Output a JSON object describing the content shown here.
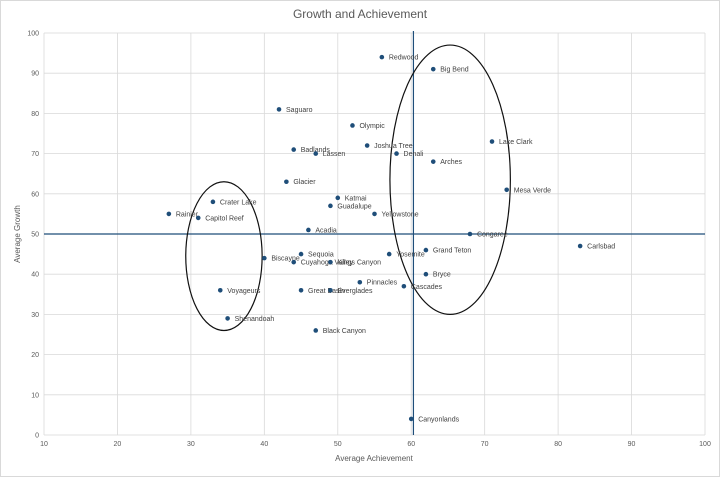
{
  "chart_data": {
    "type": "scatter",
    "title": "Growth and Achievement",
    "xlabel": "Average Achievement",
    "ylabel": "Average Growth",
    "xlim": [
      10,
      100
    ],
    "ylim": [
      0,
      100
    ],
    "x_ticks": [
      10,
      20,
      30,
      40,
      50,
      60,
      70,
      80,
      90,
      100
    ],
    "y_ticks": [
      0,
      10,
      20,
      30,
      40,
      50,
      60,
      70,
      80,
      90,
      100
    ],
    "grid": true,
    "legend": "none",
    "marker_color": "#1f4e79",
    "reference_lines": [
      {
        "orientation": "horizontal",
        "y": 50,
        "color": "#1f4e79"
      },
      {
        "orientation": "vertical",
        "x": 60.3,
        "color": "#1f4e79"
      }
    ],
    "ellipses": [
      {
        "cx": 34.5,
        "cy": 44.5,
        "rx": 5.2,
        "ry": 18.5
      },
      {
        "cx": 65.3,
        "cy": 63.5,
        "rx": 8.2,
        "ry": 33.5
      }
    ],
    "points": [
      {
        "label": "Redwood",
        "x": 56,
        "y": 94
      },
      {
        "label": "Big Bend",
        "x": 63,
        "y": 91
      },
      {
        "label": "Saguaro",
        "x": 42,
        "y": 81
      },
      {
        "label": "Olympic",
        "x": 52,
        "y": 77
      },
      {
        "label": "Lake Clark",
        "x": 71,
        "y": 73
      },
      {
        "label": "Joshua Tree",
        "x": 54,
        "y": 72
      },
      {
        "label": "Badlands",
        "x": 44,
        "y": 71
      },
      {
        "label": "Lassen",
        "x": 47,
        "y": 70
      },
      {
        "label": "Denali",
        "x": 58,
        "y": 70
      },
      {
        "label": "Arches",
        "x": 63,
        "y": 68
      },
      {
        "label": "Glacier",
        "x": 43,
        "y": 63
      },
      {
        "label": "Mesa Verde",
        "x": 73,
        "y": 61
      },
      {
        "label": "Katmai",
        "x": 50,
        "y": 59
      },
      {
        "label": "Crater Lake",
        "x": 33,
        "y": 58
      },
      {
        "label": "Guadalupe",
        "x": 49,
        "y": 57
      },
      {
        "label": "Rainier",
        "x": 27,
        "y": 55
      },
      {
        "label": "Capitol Reef",
        "x": 31,
        "y": 54
      },
      {
        "label": "Yellowstone",
        "x": 55,
        "y": 55
      },
      {
        "label": "Acadia",
        "x": 46,
        "y": 51
      },
      {
        "label": "Congaree",
        "x": 68,
        "y": 50
      },
      {
        "label": "Carlsbad",
        "x": 83,
        "y": 47
      },
      {
        "label": "Grand Teton",
        "x": 62,
        "y": 46
      },
      {
        "label": "Sequoia",
        "x": 45,
        "y": 45
      },
      {
        "label": "Yosemite",
        "x": 57,
        "y": 45
      },
      {
        "label": "Biscayne",
        "x": 40,
        "y": 44
      },
      {
        "label": "Cuyahoga Valley",
        "x": 44,
        "y": 43
      },
      {
        "label": "Kings Canyon",
        "x": 49,
        "y": 43
      },
      {
        "label": "Bryce",
        "x": 62,
        "y": 40
      },
      {
        "label": "Pinnacles",
        "x": 53,
        "y": 38
      },
      {
        "label": "Cascades",
        "x": 59,
        "y": 37
      },
      {
        "label": "Voyageurs",
        "x": 34,
        "y": 36
      },
      {
        "label": "Great Basin",
        "x": 45,
        "y": 36
      },
      {
        "label": "Everglades",
        "x": 49,
        "y": 36
      },
      {
        "label": "Shenandoah",
        "x": 35,
        "y": 29
      },
      {
        "label": "Black Canyon",
        "x": 47,
        "y": 26
      },
      {
        "label": "Canyonlands",
        "x": 60,
        "y": 4
      }
    ]
  }
}
